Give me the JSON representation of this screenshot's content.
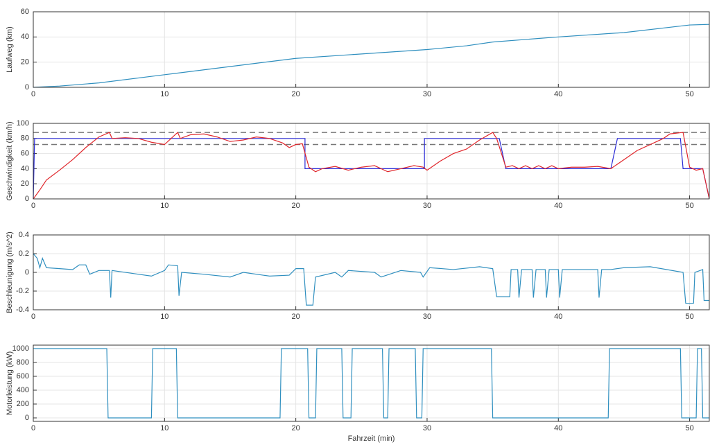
{
  "chart_data": [
    {
      "type": "line",
      "ylabel": "Laufweg (km)",
      "xlim": [
        0,
        51.5
      ],
      "xticks": [
        0,
        10,
        20,
        30,
        40,
        50
      ],
      "ylim": [
        0,
        60
      ],
      "yticks": [
        0,
        20,
        40,
        60
      ],
      "grid": true,
      "series": [
        {
          "color": "#2f8fbf",
          "x": [
            0,
            2,
            5,
            10,
            15,
            20,
            25,
            30,
            33,
            35,
            40,
            45,
            50,
            51.5
          ],
          "values": [
            0,
            1,
            3.5,
            10,
            16.5,
            23,
            26.5,
            30,
            33,
            36,
            40,
            43.5,
            49.5,
            50
          ]
        }
      ]
    },
    {
      "type": "line",
      "ylabel": "Geschwindigkeit (km/h)",
      "xlim": [
        0,
        51.5
      ],
      "xticks": [
        0,
        10,
        20,
        30,
        40,
        50
      ],
      "ylim": [
        0,
        100
      ],
      "yticks": [
        0,
        20,
        40,
        60,
        80,
        100
      ],
      "grid": true,
      "hlines": [
        88,
        72
      ],
      "hline_color": "#777777",
      "series": [
        {
          "color": "#2b2bd6",
          "x": [
            0,
            0.1,
            20.7,
            20.7,
            29.8,
            29.8,
            35.5,
            36,
            44,
            44.5,
            49.3,
            49.5,
            51,
            51.5
          ],
          "values": [
            0,
            80,
            80,
            40,
            40,
            80,
            80,
            40,
            40,
            80,
            80,
            40,
            40,
            0
          ]
        },
        {
          "color": "#e0262b",
          "x": [
            0,
            0.5,
            1,
            2,
            3,
            4,
            5,
            5.8,
            6,
            7,
            8,
            9,
            10,
            11,
            11.2,
            12,
            13,
            14,
            15,
            16,
            17,
            18,
            19,
            19.5,
            20,
            20.5,
            21,
            21.5,
            22,
            23,
            24,
            25,
            26,
            27,
            28,
            29,
            29.7,
            30,
            31,
            32,
            33,
            34,
            35,
            35.3,
            36,
            36.5,
            37,
            37.5,
            38,
            38.5,
            39,
            39.5,
            40,
            41,
            42,
            43,
            44,
            45,
            46,
            47,
            48,
            48.5,
            49.5,
            50,
            50.5,
            51,
            51.5
          ],
          "values": [
            0,
            12,
            25,
            38,
            52,
            68,
            82,
            88,
            80,
            81,
            80,
            75,
            72,
            88,
            80,
            85,
            86,
            82,
            76,
            78,
            82,
            80,
            74,
            68,
            72,
            73,
            42,
            36,
            40,
            43,
            38,
            42,
            44,
            36,
            40,
            44,
            42,
            38,
            50,
            60,
            66,
            78,
            88,
            80,
            42,
            44,
            40,
            44,
            40,
            44,
            40,
            44,
            40,
            42,
            42,
            43,
            40,
            52,
            64,
            72,
            80,
            86,
            88,
            42,
            38,
            40,
            0
          ]
        }
      ]
    },
    {
      "type": "line",
      "ylabel": "Beschleunigung (m/s^2)",
      "xlim": [
        0,
        51.5
      ],
      "xticks": [
        0,
        10,
        20,
        30,
        40,
        50
      ],
      "ylim": [
        -0.4,
        0.4
      ],
      "yticks": [
        -0.4,
        -0.2,
        0,
        0.2,
        0.4
      ],
      "grid": true,
      "series": [
        {
          "color": "#2f8fbf",
          "x": [
            0,
            0.3,
            0.5,
            0.7,
            1,
            3,
            3.5,
            4,
            4.3,
            5,
            5.8,
            5.9,
            6,
            8,
            9,
            10,
            10.3,
            11,
            11.1,
            11.3,
            13,
            15,
            16,
            18,
            19.5,
            20,
            20.6,
            20.8,
            21.3,
            21.5,
            23,
            23.5,
            24,
            26,
            26.5,
            28,
            29.5,
            29.7,
            30.2,
            32,
            34,
            35,
            35.3,
            36.3,
            36.4,
            36.9,
            37,
            37.2,
            38,
            38.1,
            38.3,
            39,
            39.1,
            39.3,
            40,
            40.1,
            40.3,
            43,
            43.1,
            43.3,
            44,
            45,
            47,
            49.5,
            49.7,
            50.3,
            50.4,
            51,
            51.1,
            51.5
          ],
          "values": [
            0.2,
            0.15,
            0.05,
            0.15,
            0.05,
            0.03,
            0.08,
            0.08,
            -0.02,
            0.02,
            0.02,
            -0.27,
            0.02,
            -0.02,
            -0.04,
            0.02,
            0.08,
            0.07,
            -0.25,
            0,
            -0.02,
            -0.05,
            0,
            -0.04,
            -0.03,
            0.04,
            0.04,
            -0.35,
            -0.35,
            -0.05,
            0,
            -0.05,
            0.02,
            0,
            -0.05,
            0.02,
            0,
            -0.05,
            0.05,
            0.03,
            0.06,
            0.04,
            -0.26,
            -0.26,
            0.03,
            0.03,
            -0.27,
            0.03,
            0.03,
            -0.27,
            0.03,
            0.03,
            -0.27,
            0.03,
            0.03,
            -0.27,
            0.03,
            0.03,
            -0.27,
            0.03,
            0.03,
            0.05,
            0.06,
            0,
            -0.33,
            -0.33,
            0,
            0.03,
            -0.3,
            -0.3
          ]
        }
      ]
    },
    {
      "type": "line",
      "ylabel": "Motorleistung (kW)",
      "xlabel": "Fahrzeit (min)",
      "xlim": [
        0,
        51.5
      ],
      "xticks": [
        0,
        10,
        20,
        30,
        40,
        50
      ],
      "ylim": [
        -50,
        1050
      ],
      "yticks": [
        0,
        200,
        400,
        600,
        800,
        1000
      ],
      "grid": true,
      "series": [
        {
          "color": "#2f8fbf",
          "x": [
            0,
            5.6,
            5.7,
            9,
            9.1,
            10.9,
            11,
            18.8,
            18.9,
            20.9,
            21,
            21.5,
            21.6,
            23.5,
            23.6,
            24.2,
            24.3,
            26.6,
            26.7,
            27,
            27.1,
            29.1,
            29.2,
            29.6,
            29.7,
            34.9,
            35,
            43.8,
            43.9,
            49.3,
            49.4,
            50.5,
            50.6,
            50.9,
            51,
            51.5
          ],
          "values": [
            1000,
            1000,
            0,
            0,
            1000,
            1000,
            0,
            0,
            1000,
            1000,
            0,
            0,
            1000,
            1000,
            0,
            0,
            1000,
            1000,
            0,
            0,
            1000,
            1000,
            0,
            0,
            1000,
            1000,
            0,
            0,
            1000,
            1000,
            0,
            0,
            1000,
            1000,
            0,
            0
          ]
        }
      ]
    }
  ]
}
